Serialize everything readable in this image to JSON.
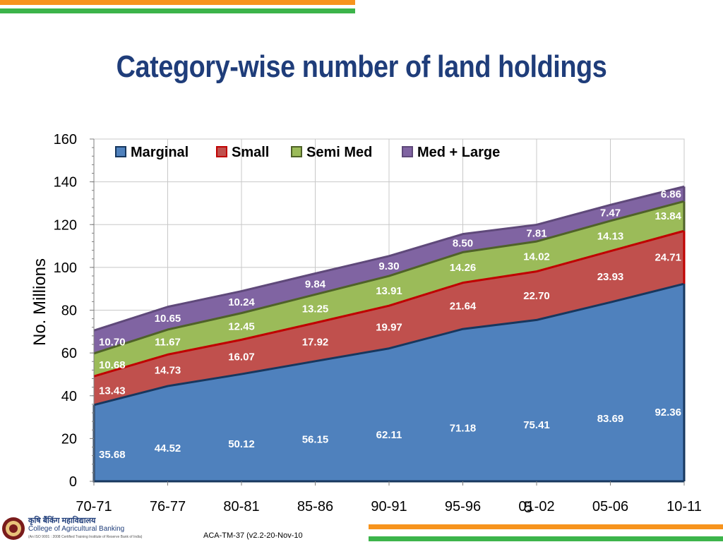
{
  "slide": {
    "title": "Category-wise number of land holdings",
    "page_number": "5",
    "footer_code": "ACA-TM-37 (v2.2-20-Nov-10",
    "college_hindi": "कृषि बैंकिंग महाविद्यालय",
    "college_name": "College of Agricultural Banking",
    "college_sub": "(An ISO 9001 : 2008 Certified Training Institute of Reserve Bank of India)"
  },
  "colors": {
    "marginal": "#4f81bd",
    "small": "#c0504d",
    "semi_med": "#9bbb59",
    "med_large": "#8064a2",
    "marginal_edge": "#17375e",
    "small_edge": "#c00000",
    "semi_med_edge": "#4f6228",
    "med_large_edge": "#5f497a",
    "title": "#1f3d7a",
    "bar_orange": "#f7941d",
    "bar_green": "#3cb44a"
  },
  "chart_data": {
    "type": "area",
    "stacked": true,
    "title": "",
    "xlabel": "",
    "ylabel": "No. Millions",
    "ylim": [
      0,
      160
    ],
    "yticks": [
      "0",
      "20",
      "40",
      "60",
      "80",
      "100",
      "120",
      "140",
      "160"
    ],
    "categories": [
      "70-71",
      "76-77",
      "80-81",
      "85-86",
      "90-91",
      "95-96",
      "01-02",
      "05-06",
      "10-11"
    ],
    "grid": true,
    "legend_position": "top",
    "series": [
      {
        "name": "Marginal",
        "values": [
          35.68,
          44.52,
          50.12,
          56.15,
          62.11,
          71.18,
          75.41,
          83.69,
          92.36
        ]
      },
      {
        "name": "Small",
        "values": [
          13.43,
          14.73,
          16.07,
          17.92,
          19.97,
          21.64,
          22.7,
          23.93,
          24.71
        ]
      },
      {
        "name": "Semi Med",
        "values": [
          10.68,
          11.67,
          12.45,
          13.25,
          13.91,
          14.26,
          14.02,
          14.13,
          13.84
        ]
      },
      {
        "name": "Med + Large",
        "values": [
          10.7,
          10.65,
          10.24,
          9.84,
          9.3,
          8.5,
          7.81,
          7.47,
          6.86
        ]
      }
    ]
  }
}
